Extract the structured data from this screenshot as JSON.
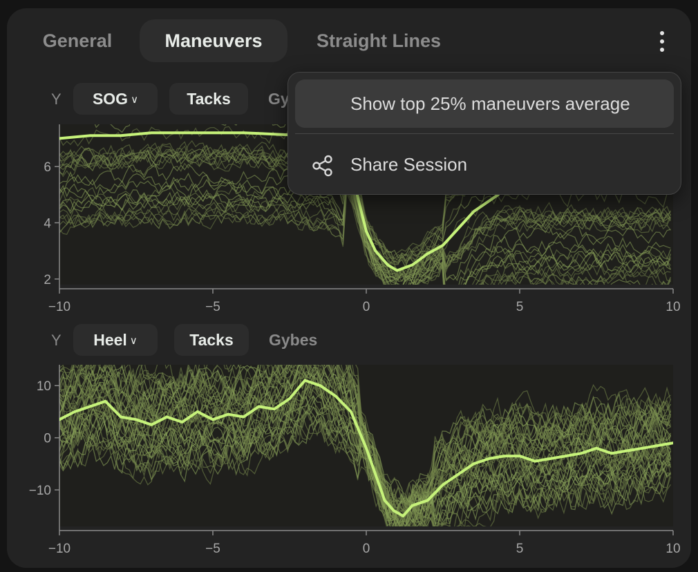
{
  "tabs": [
    {
      "label": "General",
      "active": false
    },
    {
      "label": "Maneuvers",
      "active": true
    },
    {
      "label": "Straight Lines",
      "active": false
    }
  ],
  "menu": {
    "items": [
      {
        "label": "Show top 25% maneuvers average",
        "icon": ""
      },
      {
        "label": "Share Session",
        "icon": "share-icon"
      }
    ]
  },
  "charts": [
    {
      "y_label": "Y",
      "metric": "SOG",
      "filters": {
        "tacks": "Tacks",
        "gybes": "Gybes"
      },
      "active_filter": "tacks"
    },
    {
      "y_label": "Y",
      "metric": "Heel",
      "filters": {
        "tacks": "Tacks",
        "gybes": "Gybes"
      },
      "active_filter": "tacks"
    }
  ],
  "chart_data": [
    {
      "type": "line",
      "xlim": [
        -10,
        10
      ],
      "ylim": [
        1.8,
        7.5
      ],
      "xticks": [
        "−10",
        "−5",
        "0",
        "5",
        "10"
      ],
      "yticks": [
        "2",
        "4",
        "6"
      ],
      "series": [
        {
          "color": "#c6f27a",
          "x": [
            -10,
            -9,
            -8,
            -7,
            -6,
            -5,
            -4,
            -3,
            -2,
            -1.5,
            -1,
            -0.6,
            -0.3,
            0,
            0.3,
            0.7,
            1,
            1.5,
            2,
            2.5,
            3,
            3.5,
            4.3
          ],
          "y": [
            7.0,
            7.1,
            7.1,
            7.2,
            7.2,
            7.2,
            7.2,
            7.15,
            7.1,
            7.0,
            6.7,
            6.0,
            5.0,
            3.7,
            3.0,
            2.5,
            2.3,
            2.5,
            2.9,
            3.2,
            3.8,
            4.4,
            5.0
          ]
        }
      ]
    },
    {
      "type": "line",
      "xlim": [
        -10,
        10
      ],
      "ylim": [
        -17,
        14
      ],
      "xticks": [
        "−10",
        "−5",
        "0",
        "5",
        "10"
      ],
      "yticks": [
        "10",
        "0",
        "−10"
      ],
      "series": [
        {
          "color": "#c6f27a",
          "x": [
            -10,
            -9.5,
            -9,
            -8.5,
            -8,
            -7.5,
            -7,
            -6.5,
            -6,
            -5.5,
            -5,
            -4.5,
            -4,
            -3.5,
            -3,
            -2.5,
            -2,
            -1.5,
            -1,
            -0.5,
            0,
            0.3,
            0.6,
            0.9,
            1.2,
            1.5,
            2,
            2.5,
            3,
            3.5,
            4,
            4.5,
            5,
            5.5,
            6,
            6.5,
            7,
            7.5,
            8,
            8.5,
            9,
            9.5,
            10
          ],
          "y": [
            3.5,
            5,
            6,
            7,
            4,
            3.5,
            2.5,
            4,
            3,
            5,
            3.5,
            4.5,
            4,
            6,
            5.5,
            7.5,
            11,
            10,
            8,
            5,
            -2,
            -7,
            -12,
            -14,
            -15,
            -13,
            -12,
            -9,
            -7,
            -5,
            -4,
            -3.5,
            -3.5,
            -4.5,
            -4,
            -3.5,
            -3,
            -2,
            -3,
            -2.5,
            -2,
            -1.5,
            -1
          ]
        }
      ]
    }
  ]
}
